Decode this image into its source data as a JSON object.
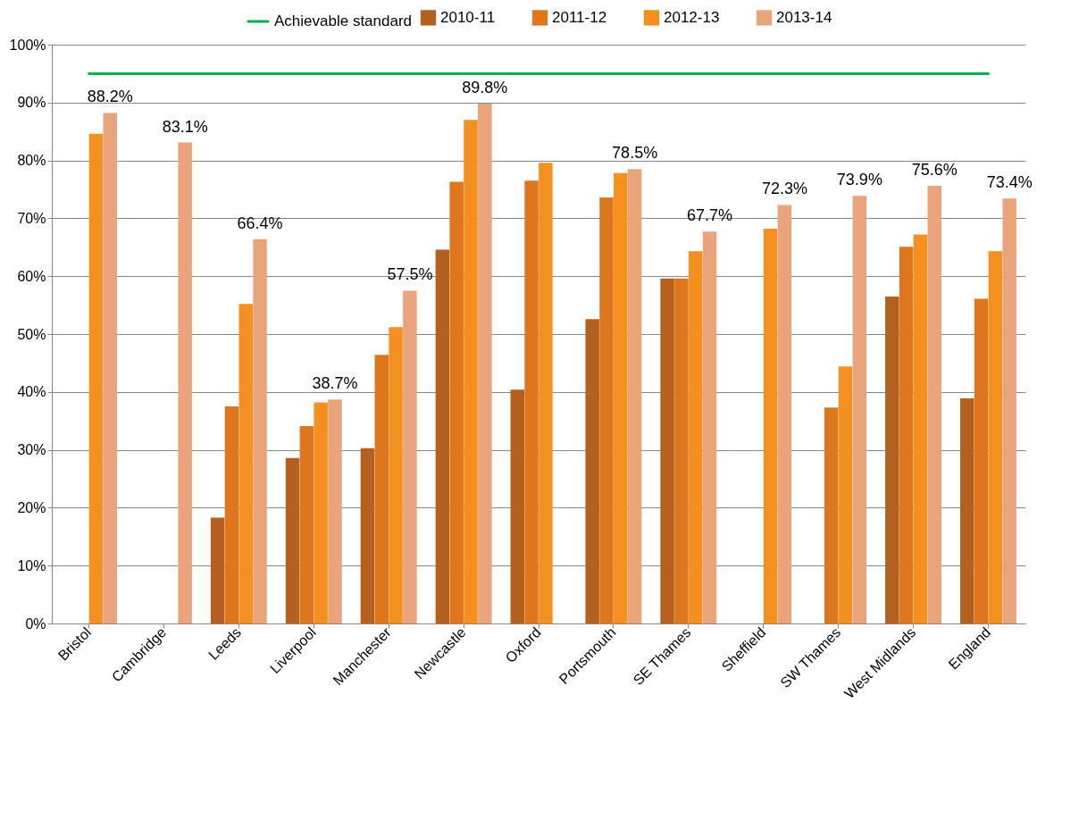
{
  "chart_data": {
    "type": "bar",
    "categories": [
      "Bristol",
      "Cambridge",
      "Leeds",
      "Liverpool",
      "Manchester",
      "Newcastle",
      "Oxford",
      "Portsmouth",
      "SE Thames",
      "Sheffield",
      "SW Thames",
      "West Midlands",
      "England"
    ],
    "series": [
      {
        "name": "2010-11",
        "color": "#b5601e",
        "values": [
          null,
          null,
          18.3,
          28.6,
          30.3,
          64.6,
          40.4,
          52.6,
          59.6,
          null,
          null,
          56.5,
          38.9
        ]
      },
      {
        "name": "2011-12",
        "color": "#dd761c",
        "values": [
          null,
          null,
          37.5,
          34.1,
          46.4,
          76.3,
          76.5,
          73.6,
          59.6,
          null,
          37.3,
          65.1,
          56.1
        ]
      },
      {
        "name": "2012-13",
        "color": "#f39020",
        "values": [
          84.6,
          null,
          55.2,
          38.2,
          51.2,
          87.0,
          79.6,
          77.8,
          64.3,
          68.2,
          44.4,
          67.2,
          64.3
        ]
      },
      {
        "name": "2013-14",
        "color": "#e9a47c",
        "values": [
          88.2,
          83.1,
          66.4,
          38.7,
          57.5,
          89.8,
          null,
          78.5,
          67.7,
          72.3,
          73.9,
          75.6,
          73.4
        ],
        "value_labels": [
          "88.2%",
          "83.1%",
          "66.4%",
          "38.7%",
          "57.5%",
          "89.8%",
          null,
          "78.5%",
          "67.7%",
          "72.3%",
          "73.9%",
          "75.6%",
          "73.4%"
        ]
      },
      {
        "name": "Achievable standard",
        "type": "line",
        "color": "#00b050",
        "values": [
          95,
          95,
          95,
          95,
          95,
          95,
          95,
          95,
          95,
          95,
          95,
          95,
          95
        ]
      }
    ],
    "ylim": [
      0,
      100
    ],
    "yticks": [
      {
        "value": 0,
        "label": "0%"
      },
      {
        "value": 10,
        "label": "10%"
      },
      {
        "value": 20,
        "label": "20%"
      },
      {
        "value": 30,
        "label": "30%"
      },
      {
        "value": 40,
        "label": "40%"
      },
      {
        "value": 50,
        "label": "50%"
      },
      {
        "value": 60,
        "label": "60%"
      },
      {
        "value": 70,
        "label": "70%"
      },
      {
        "value": 80,
        "label": "80%"
      },
      {
        "value": 90,
        "label": "90%"
      },
      {
        "value": 100,
        "label": "100%"
      }
    ],
    "grid": "y",
    "legend": "top"
  }
}
